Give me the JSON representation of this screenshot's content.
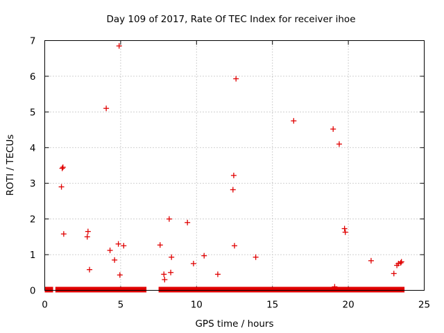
{
  "chart_data": {
    "type": "scatter",
    "title": "Day 109 of 2017, Rate Of TEC Index for receiver ihoe",
    "xlabel": "GPS time / hours",
    "ylabel": "ROTI / TECUs",
    "xlim": [
      0,
      25
    ],
    "ylim": [
      0,
      7
    ],
    "xticks": [
      "0",
      "5",
      "10",
      "15",
      "20",
      "25"
    ],
    "yticks": [
      "0",
      "1",
      "2",
      "3",
      "4",
      "5",
      "6",
      "7"
    ],
    "grid": true,
    "marker": "+",
    "color": "#e00000",
    "baseline_bands": [
      {
        "x_start": 0.0,
        "x_end": 0.55,
        "y": 0.02
      },
      {
        "x_start": 0.7,
        "x_end": 6.7,
        "y": 0.02
      },
      {
        "x_start": 7.5,
        "x_end": 23.7,
        "y": 0.02
      }
    ],
    "series": [
      {
        "x": [
          1.2,
          1.15,
          1.25,
          1.1,
          2.85,
          2.8,
          2.95,
          4.05,
          4.3,
          4.6,
          4.85,
          4.95,
          5.2,
          4.9,
          7.6,
          7.85,
          7.9,
          8.2,
          8.3,
          8.35,
          9.4,
          9.8,
          10.5,
          11.4,
          12.45,
          12.4,
          12.5,
          12.6,
          13.9,
          16.4,
          19.0,
          19.4,
          19.1,
          19.75,
          19.8,
          21.5,
          23.0,
          23.2,
          23.3,
          23.45,
          23.5
        ],
        "y": [
          3.45,
          3.42,
          1.58,
          2.9,
          1.65,
          1.5,
          0.58,
          5.1,
          1.12,
          0.85,
          1.3,
          0.43,
          1.25,
          6.85,
          1.27,
          0.45,
          0.3,
          2.0,
          0.5,
          0.93,
          1.9,
          0.75,
          0.97,
          0.45,
          3.22,
          2.82,
          1.25,
          5.93,
          0.93,
          4.75,
          4.52,
          4.1,
          0.1,
          1.73,
          1.63,
          0.83,
          0.47,
          0.7,
          0.75,
          0.77,
          0.8
        ]
      }
    ]
  }
}
